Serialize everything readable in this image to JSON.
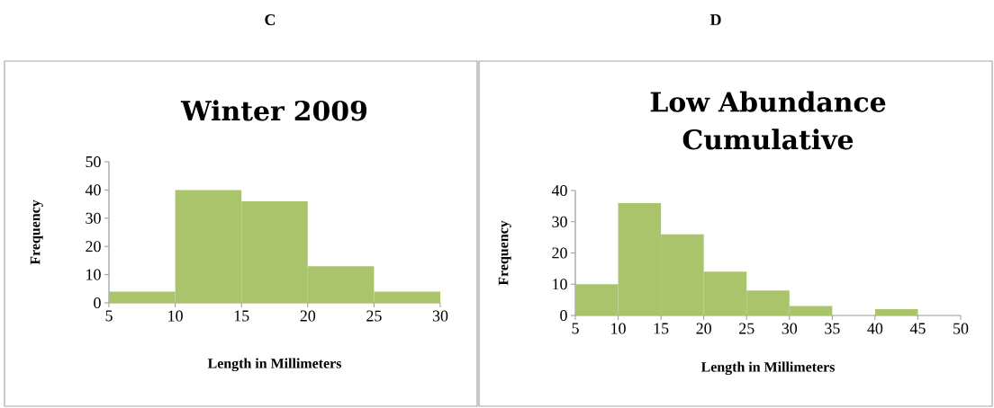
{
  "chart_data": [
    {
      "type": "histogram",
      "title": "Winter 2009",
      "xlabel": "Length in Millimeters",
      "ylabel": "Frequency",
      "annotations": [
        "C"
      ],
      "bins": [
        5,
        10,
        15,
        20,
        25,
        30
      ],
      "values": [
        4,
        40,
        36,
        13,
        4
      ],
      "color": "#a9c46b",
      "xlim": [
        5,
        30
      ],
      "ylim": [
        0,
        50
      ],
      "xticks": [
        5,
        10,
        15,
        20,
        25,
        30
      ],
      "yticks": [
        0,
        10,
        20,
        30,
        40,
        50
      ],
      "grid": false
    },
    {
      "type": "histogram",
      "title": "Low Abundance Cumulative",
      "xlabel": "Length in Millimeters",
      "ylabel": "Frequency",
      "annotations": [
        "D"
      ],
      "bins": [
        5,
        10,
        15,
        20,
        25,
        30,
        35,
        40,
        45,
        50
      ],
      "values": [
        10,
        36,
        26,
        14,
        8,
        3,
        0,
        2,
        0
      ],
      "color": "#a9c46b",
      "xlim": [
        5,
        50
      ],
      "ylim": [
        0,
        40
      ],
      "xticks": [
        5,
        10,
        15,
        20,
        25,
        30,
        35,
        40,
        45,
        50
      ],
      "yticks": [
        0,
        10,
        20,
        30,
        40
      ],
      "grid": false
    }
  ]
}
